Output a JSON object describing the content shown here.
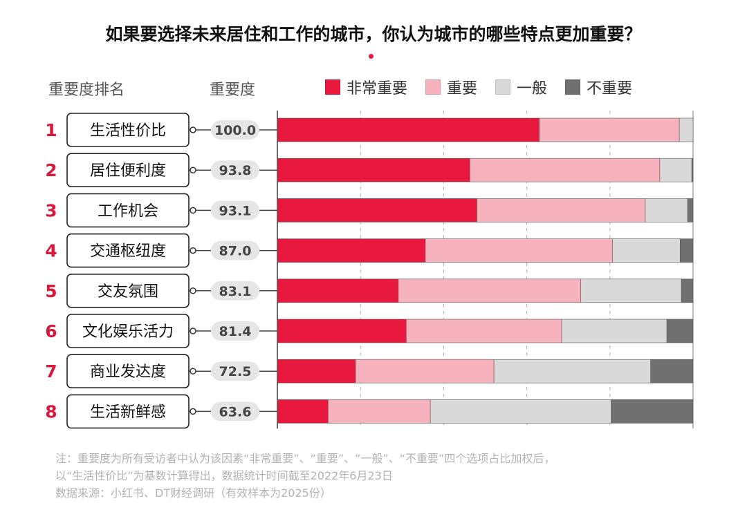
{
  "title": "如果要选择未来居住和工作的城市，你认为城市的哪些特点更加重要？",
  "headers": {
    "rank": "重要度排名",
    "score": "重要度"
  },
  "colors": {
    "very_important": "#e8183f",
    "important": "#f7b3bd",
    "average": "#d9d9d9",
    "not_important": "#707070",
    "rank_number": "#d6193d"
  },
  "chart_data": {
    "type": "bar",
    "orientation": "horizontal",
    "stacked": true,
    "normalized": true,
    "categories": [
      "生活性价比",
      "居住便利度",
      "工作机会",
      "交通枢纽度",
      "交友氛围",
      "文化娱乐活力",
      "商业发达度",
      "生活新鲜感"
    ],
    "ranks": [
      "1",
      "2",
      "3",
      "4",
      "5",
      "6",
      "7",
      "8"
    ],
    "scores": [
      "100.0",
      "93.8",
      "93.1",
      "87.0",
      "83.1",
      "81.4",
      "72.5",
      "63.6"
    ],
    "series": [
      {
        "name": "非常重要",
        "values": [
          63.0,
          46.3,
          48.0,
          35.6,
          29.1,
          31.0,
          18.8,
          12.2
        ]
      },
      {
        "name": "重要",
        "values": [
          33.7,
          45.7,
          40.5,
          45.0,
          43.9,
          37.4,
          33.3,
          24.6
        ]
      },
      {
        "name": "一般",
        "values": [
          3.3,
          7.7,
          10.2,
          16.3,
          24.2,
          25.3,
          37.7,
          43.5
        ]
      },
      {
        "name": "不重要",
        "values": [
          0.0,
          0.3,
          1.3,
          3.1,
          2.8,
          6.3,
          10.2,
          19.7
        ]
      }
    ],
    "xlim": [
      0,
      100
    ],
    "grid": true,
    "legend_position": "top"
  },
  "footnotes": [
    "注：重要度为所有受访者中认为该因素“非常重要”、“重要”、“一般”、“不重要”四个选项占比加权后，",
    "以“生活性价比”为基数计算得出，数据统计时间截至2022年6月23日",
    "数据来源：小红书、DT财经调研（有效样本为2025份）"
  ]
}
